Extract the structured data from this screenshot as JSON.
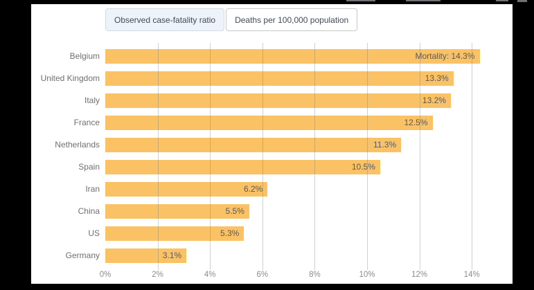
{
  "window": {
    "frame_color": "#000000",
    "panel_color": "#ffffff"
  },
  "tabs": [
    {
      "label": "Observed case-fatality ratio",
      "selected": true
    },
    {
      "label": "Deaths per 100,000 population",
      "selected": false
    }
  ],
  "colors": {
    "bar": "#fbc265",
    "gridline": "rgba(120,120,120,0.35)",
    "tab_selected_bg": "#eef3f9",
    "tab_selected_border": "#d3dce6",
    "tab_unselected_border": "#c6c6c6",
    "category_label": "#6f6f6f",
    "value_label": "#565a5f",
    "axis_label": "#8b8b8b"
  },
  "chart_data": {
    "type": "bar",
    "orientation": "horizontal",
    "title": "",
    "categories": [
      "Belgium",
      "United Kingdom",
      "Italy",
      "France",
      "Netherlands",
      "Spain",
      "Iran",
      "China",
      "US",
      "Germany"
    ],
    "values": [
      14.3,
      13.3,
      13.2,
      12.5,
      11.3,
      10.5,
      6.2,
      5.5,
      5.3,
      3.1
    ],
    "bar_labels": [
      "Mortality: 14.3%",
      "13.3%",
      "13.2%",
      "12.5%",
      "11.3%",
      "10.5%",
      "6.2%",
      "5.5%",
      "5.3%",
      "3.1%"
    ],
    "x_ticks": [
      "0%",
      "2%",
      "4%",
      "6%",
      "8%",
      "10%",
      "12%",
      "14%"
    ],
    "x_tick_values": [
      0,
      2,
      4,
      6,
      8,
      10,
      12,
      14
    ],
    "xlim": [
      0,
      15.6
    ],
    "grid": true,
    "legend_position": "none",
    "value_unit": "percent"
  }
}
